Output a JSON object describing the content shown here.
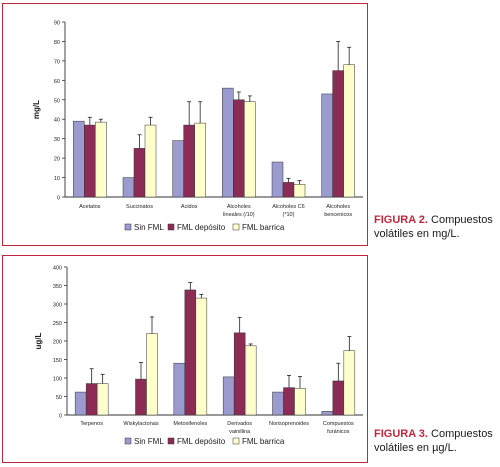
{
  "captions": [
    {
      "figure": "FIGURA 2.",
      "text": " Compuestos volátiles en mg/L."
    },
    {
      "figure": "FIGURA 3.",
      "text": " Compuestos volátiles en µg/L."
    }
  ],
  "colors": {
    "sin_fml": "#9b9bd0",
    "fml_deposito": "#8c2c56",
    "fml_barrica": "#ffffcc",
    "border": "#c2263c"
  },
  "chart_data": [
    {
      "type": "bar",
      "ylabel": "mg/L",
      "xlabel": "",
      "ylim": [
        0,
        90
      ],
      "ytick_step": 10,
      "categories": [
        [
          "Acetatos"
        ],
        [
          "Succinatos"
        ],
        [
          "Acidos"
        ],
        [
          "Alcoholes",
          "lineales (/10)"
        ],
        [
          "Alcoholes C6",
          "(*10)"
        ],
        [
          "Alcoholes",
          "bencenicos"
        ]
      ],
      "series": [
        {
          "name": "Sin FML",
          "values": [
            39,
            10,
            29,
            56,
            18,
            53
          ],
          "errors": [
            0,
            0,
            0,
            0,
            0,
            0
          ]
        },
        {
          "name": "FML depósito",
          "values": [
            37,
            25,
            37,
            50,
            7.5,
            65
          ],
          "errors": [
            4,
            7,
            12,
            4,
            2,
            15
          ]
        },
        {
          "name": "FML barrica",
          "values": [
            38.5,
            37,
            38,
            49,
            6.5,
            68
          ],
          "errors": [
            1.5,
            4,
            11,
            3,
            2,
            9
          ]
        }
      ],
      "legend": "bottom"
    },
    {
      "type": "bar",
      "ylabel": "ug/L",
      "xlabel": "",
      "ylim": [
        0,
        400
      ],
      "ytick_step": 50,
      "categories": [
        [
          "Terpenos"
        ],
        [
          "Wiskylactonas"
        ],
        [
          "Metoxifenoles"
        ],
        [
          "Derivados",
          "vainillina"
        ],
        [
          "Norisoprenoides"
        ],
        [
          "Compuestos",
          "furánicos"
        ]
      ],
      "series": [
        {
          "name": "Sin FML",
          "values": [
            62,
            0,
            140,
            103,
            62,
            10
          ],
          "errors": [
            0,
            0,
            0,
            0,
            0,
            0
          ]
        },
        {
          "name": "FML depósito",
          "values": [
            85,
            97,
            338,
            222,
            74,
            92
          ],
          "errors": [
            40,
            45,
            20,
            42,
            33,
            48
          ]
        },
        {
          "name": "FML barrica",
          "values": [
            85,
            220,
            316,
            187,
            72,
            174
          ],
          "errors": [
            25,
            45,
            10,
            5,
            32,
            38
          ]
        }
      ],
      "legend": "bottom"
    }
  ]
}
